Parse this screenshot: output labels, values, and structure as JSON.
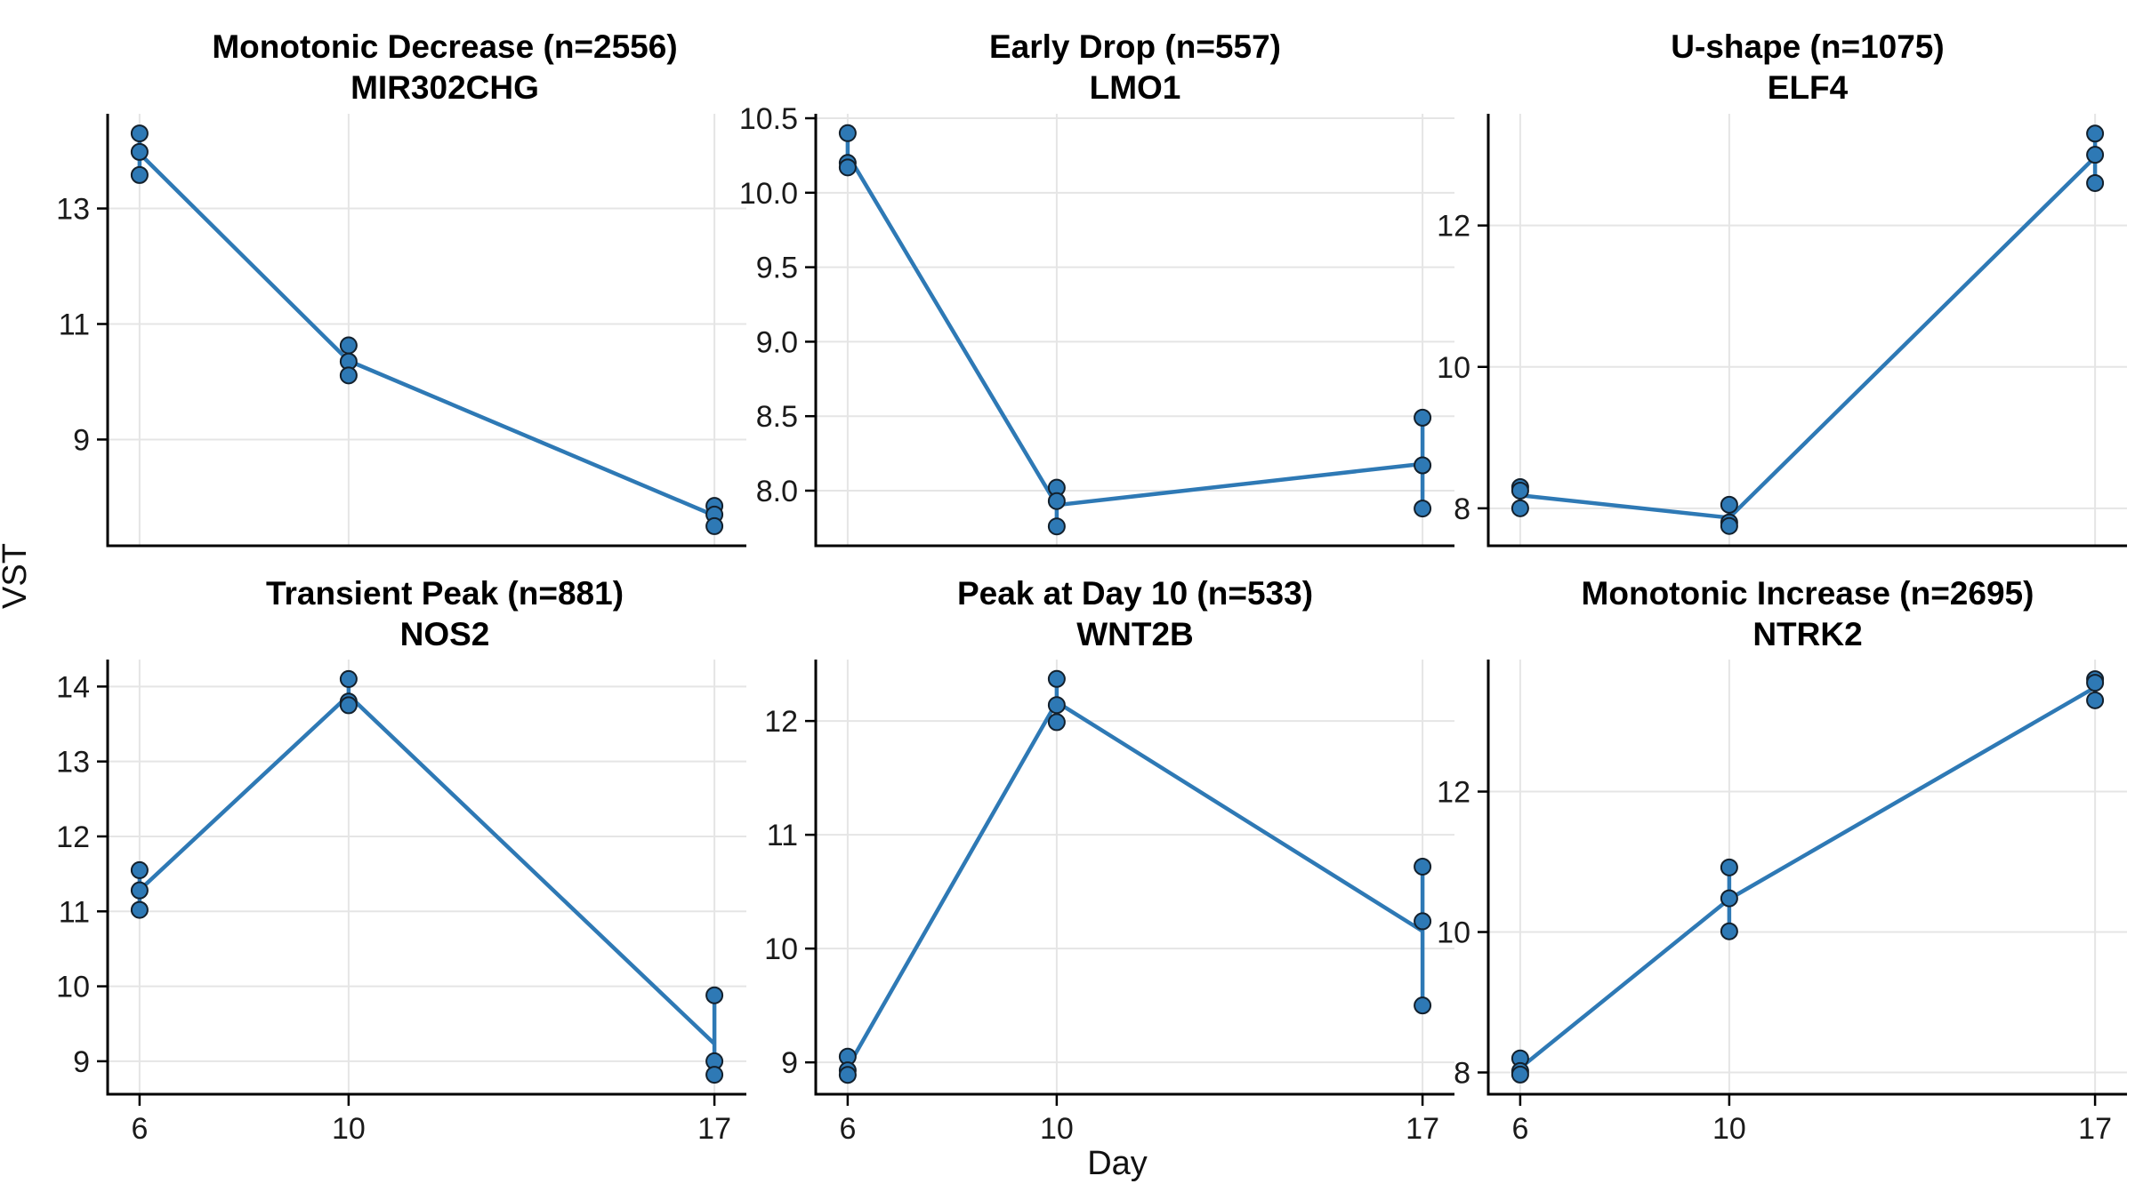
{
  "figure": {
    "ylabel": "VST",
    "xlabel": "Day",
    "background": "#ffffff",
    "line_color": "#2E79B5",
    "point_fill": "#2E79B5",
    "point_stroke": "#13202c",
    "grid_color": "#e5e5e5",
    "axis_color": "#000000",
    "tick_label_color": "#1a1a1a",
    "x_tick_labels": [
      "6",
      "10",
      "17"
    ]
  },
  "chart_data": [
    {
      "type": "line",
      "title": "Monotonic Decrease (n=2556)",
      "subtitle": "MIR302CHG",
      "xlabel": "Day",
      "ylabel": "VST",
      "x": [
        6,
        10,
        17
      ],
      "replicates": [
        [
          14.3,
          13.98,
          13.58
        ],
        [
          10.63,
          10.35,
          10.11
        ],
        [
          7.85,
          7.7,
          7.5
        ]
      ],
      "yticks": [
        9,
        11,
        13
      ],
      "ytick_decimals": 0,
      "ylim": [
        7.16,
        14.64
      ],
      "grid": true,
      "legend": "none"
    },
    {
      "type": "line",
      "title": "Early Drop (n=557)",
      "subtitle": "LMO1",
      "xlabel": "Day",
      "ylabel": "VST",
      "x": [
        6,
        10,
        17
      ],
      "replicates": [
        [
          10.4,
          10.2,
          10.17
        ],
        [
          8.02,
          7.93,
          7.76
        ],
        [
          8.49,
          8.17,
          7.88
        ]
      ],
      "yticks": [
        8.0,
        8.5,
        9.0,
        9.5,
        10.0,
        10.5
      ],
      "ytick_decimals": 1,
      "ylim": [
        7.63,
        10.53
      ],
      "grid": true,
      "legend": "none"
    },
    {
      "type": "line",
      "title": "U-shape (n=1075)",
      "subtitle": "ELF4",
      "xlabel": "Day",
      "ylabel": "VST",
      "x": [
        6,
        10,
        17
      ],
      "replicates": [
        [
          8.3,
          8.25,
          8.0
        ],
        [
          8.05,
          7.8,
          7.75
        ],
        [
          13.3,
          13.0,
          12.6
        ]
      ],
      "yticks": [
        8,
        10,
        12
      ],
      "ytick_decimals": 0,
      "ylim": [
        7.47,
        13.58
      ],
      "grid": true,
      "legend": "none"
    },
    {
      "type": "line",
      "title": "Transient Peak (n=881)",
      "subtitle": "NOS2",
      "xlabel": "Day",
      "ylabel": "VST",
      "x": [
        6,
        10,
        17
      ],
      "replicates": [
        [
          11.55,
          11.28,
          11.02
        ],
        [
          14.1,
          13.8,
          13.75
        ],
        [
          9.88,
          9.0,
          8.82
        ]
      ],
      "yticks": [
        9,
        10,
        11,
        12,
        13,
        14
      ],
      "ytick_decimals": 0,
      "ylim": [
        8.56,
        14.36
      ],
      "grid": true,
      "legend": "none"
    },
    {
      "type": "line",
      "title": "Peak at Day 10 (n=533)",
      "subtitle": "WNT2B",
      "xlabel": "Day",
      "ylabel": "VST",
      "x": [
        6,
        10,
        17
      ],
      "replicates": [
        [
          9.05,
          8.93,
          8.89
        ],
        [
          12.37,
          12.14,
          11.99
        ],
        [
          10.72,
          10.24,
          9.5
        ]
      ],
      "yticks": [
        9,
        10,
        11,
        12
      ],
      "ytick_decimals": 0,
      "ylim": [
        8.72,
        12.54
      ],
      "grid": true,
      "legend": "none"
    },
    {
      "type": "line",
      "title": "Monotonic Increase (n=2695)",
      "subtitle": "NTRK2",
      "xlabel": "Day",
      "ylabel": "VST",
      "x": [
        6,
        10,
        17
      ],
      "replicates": [
        [
          8.2,
          8.02,
          7.97
        ],
        [
          10.92,
          10.48,
          10.01
        ],
        [
          13.6,
          13.55,
          13.3
        ]
      ],
      "yticks": [
        8,
        10,
        12
      ],
      "ytick_decimals": 0,
      "ylim": [
        7.69,
        13.88
      ],
      "grid": true,
      "legend": "none"
    }
  ]
}
